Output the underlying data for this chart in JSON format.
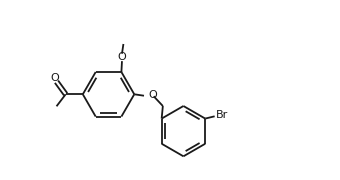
{
  "bg": "#ffffff",
  "lc": "#1a1a1a",
  "lw": 1.3,
  "fs": 8.0,
  "figsize": [
    3.4,
    1.8
  ],
  "dpi": 100,
  "xlim": [
    -0.5,
    10.0
  ],
  "ylim": [
    0.0,
    6.2
  ]
}
